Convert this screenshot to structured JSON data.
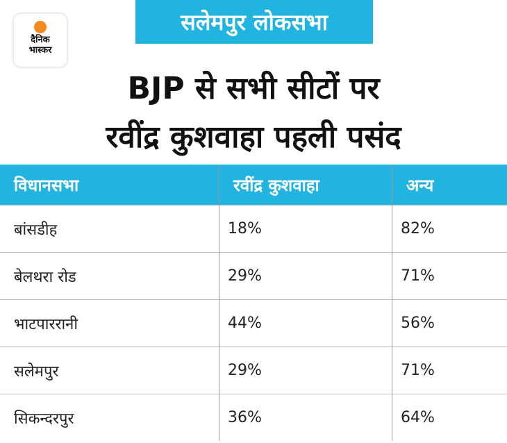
{
  "logo": {
    "line1": "दैनिक",
    "line2": "भास्कर"
  },
  "banner": "सलेमपुर लोकसभा",
  "title": {
    "line1": "BJP से सभी सीटों पर",
    "line2": "रवींद्र कुशवाहा पहली पसंद"
  },
  "colors": {
    "accent": "#22b4e0",
    "logo_sun": "#f58a1f"
  },
  "chart_data": {
    "type": "table",
    "columns": [
      "विधानसभा",
      "रवींद्र कुशवाहा",
      "अन्य"
    ],
    "rows": [
      [
        "बांसडीह",
        "18%",
        "82%"
      ],
      [
        "बेलथरा रोड",
        "29%",
        "71%"
      ],
      [
        "भाटपाररानी",
        "44%",
        "56%"
      ],
      [
        "सलेमपुर",
        "29%",
        "71%"
      ],
      [
        "सिकन्दरपुर",
        "36%",
        "64%"
      ]
    ]
  }
}
